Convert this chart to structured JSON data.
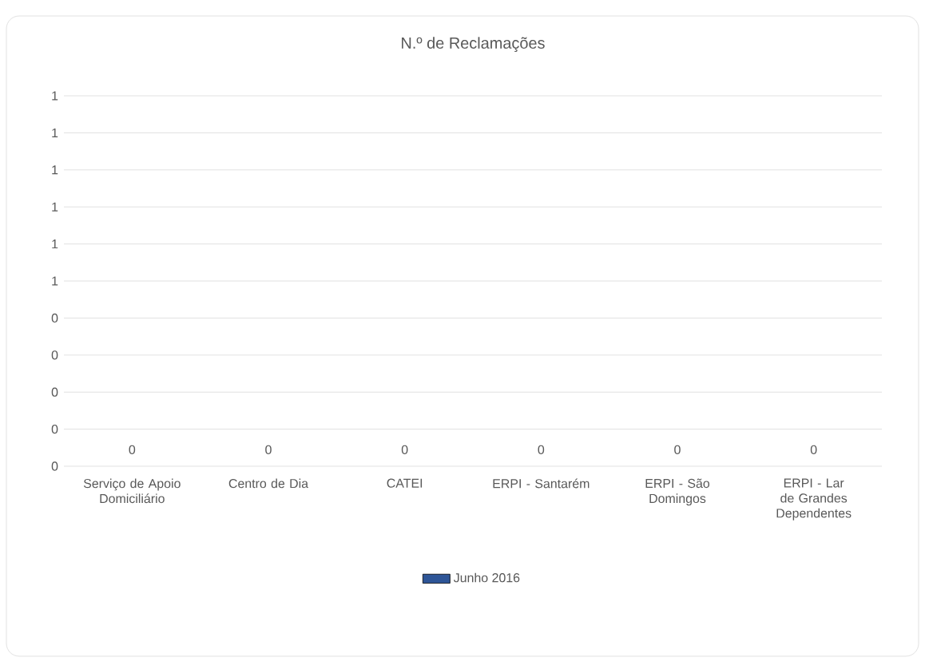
{
  "chart_data": {
    "type": "bar",
    "title": "N.º de Reclamações",
    "categories": [
      "Serviço de Apoio Domiciliário",
      "Centro de Dia",
      "CATEI",
      "ERPI - Santarém",
      "ERPI - São Domingos",
      "ERPI - Lar de Grandes Dependentes"
    ],
    "series": [
      {
        "name": "Junho 2016",
        "color": "#2e5597",
        "values": [
          0,
          0,
          0,
          0,
          0,
          0
        ]
      }
    ],
    "ylim": [
      0,
      1
    ],
    "yticks": [
      {
        "value": 0,
        "label": "0"
      },
      {
        "value": 0.1,
        "label": "0"
      },
      {
        "value": 0.2,
        "label": "0"
      },
      {
        "value": 0.3,
        "label": "0"
      },
      {
        "value": 0.4,
        "label": "0"
      },
      {
        "value": 0.5,
        "label": "1"
      },
      {
        "value": 0.6,
        "label": "1"
      },
      {
        "value": 0.7,
        "label": "1"
      },
      {
        "value": 0.8,
        "label": "1"
      },
      {
        "value": 0.9,
        "label": "1"
      },
      {
        "value": 1.0,
        "label": "1"
      }
    ],
    "grid": "y",
    "legend": "bottom",
    "data_labels": true
  }
}
